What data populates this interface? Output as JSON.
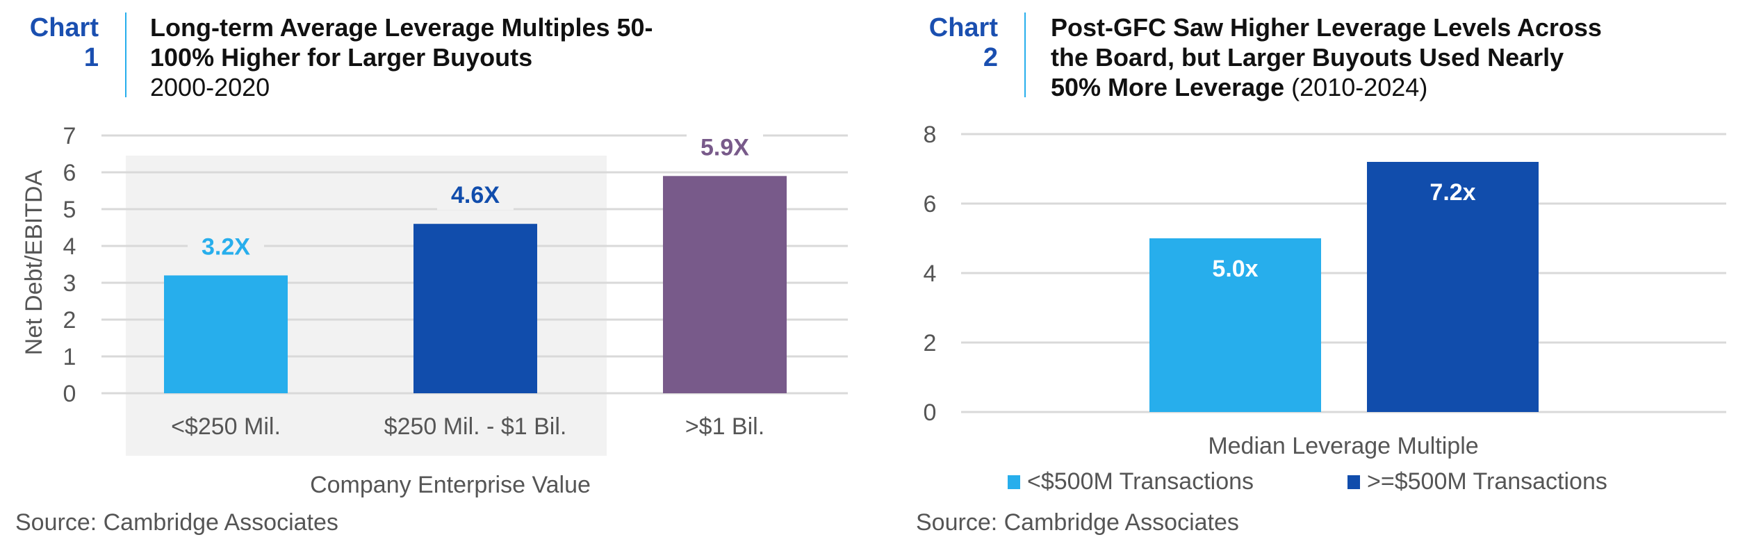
{
  "colors": {
    "light_blue": "#27AEEC",
    "dark_blue": "#114DAC",
    "purple": "#785A8A",
    "chart_label": "#1A4FB0",
    "grid": "#D9D9D9",
    "shade": "#F2F2F2"
  },
  "chart_data": [
    {
      "type": "bar",
      "chart_label": [
        "Chart",
        "1"
      ],
      "title_lines": [
        "Long-term Average Leverage Multiples 50-",
        "100% Higher for Larger Buyouts"
      ],
      "subtitle": "2000-2020",
      "categories": [
        "<$250 Mil.",
        "$250 Mil. - $1 Bil.",
        ">$1 Bil."
      ],
      "values": [
        3.2,
        4.6,
        5.9
      ],
      "data_labels": [
        "3.2X",
        "4.6X",
        "5.9X"
      ],
      "bar_colors": [
        "#27AEEC",
        "#114DAC",
        "#785A8A"
      ],
      "label_colors": [
        "#27AEEC",
        "#114DAC",
        "#785A8A"
      ],
      "xlabel": "Company Enterprise Value",
      "ylabel": "Net Debt/EBITDA",
      "ylim": [
        0,
        7
      ],
      "yticks": [
        "0",
        "1",
        "2",
        "3",
        "4",
        "5",
        "6",
        "7"
      ],
      "grid": true,
      "source": "Source: Cambridge Associates"
    },
    {
      "type": "bar",
      "chart_label": [
        "Chart",
        "2"
      ],
      "title_lines": [
        "Post-GFC Saw Higher Leverage Levels Across",
        "the Board, but Larger Buyouts Used Nearly",
        "50% More Leverage"
      ],
      "subtitle": "(2010-2024)",
      "categories": [
        "Median Leverage Multiple"
      ],
      "series": [
        {
          "name": "<$500M Transactions",
          "values": [
            5.0
          ],
          "data_label": "5.0x",
          "color": "#27AEEC"
        },
        {
          "name": ">=$500M Transactions",
          "values": [
            7.2
          ],
          "data_label": "7.2x",
          "color": "#114DAC"
        }
      ],
      "ylim": [
        0,
        8
      ],
      "yticks": [
        "0",
        "2",
        "4",
        "6",
        "8"
      ],
      "grid": true,
      "legend": "bottom",
      "source": "Source: Cambridge Associates"
    }
  ]
}
